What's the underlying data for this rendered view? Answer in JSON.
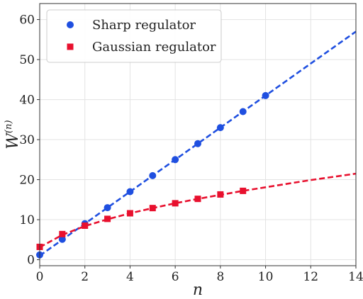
{
  "chart_data": {
    "type": "scatter",
    "xlabel": "n",
    "ylabel": "W",
    "ylabel_superscript": "(n)",
    "xlim": [
      0,
      14
    ],
    "ylim": [
      -1.5,
      64
    ],
    "xticks": [
      0,
      2,
      4,
      6,
      8,
      10,
      12,
      14
    ],
    "yticks": [
      0,
      10,
      20,
      30,
      40,
      50,
      60
    ],
    "grid": true,
    "legend_position": "top-left",
    "series": [
      {
        "name": "Sharp regulator",
        "color": "#1f4fe0",
        "marker": "circle",
        "x": [
          0,
          1,
          2,
          3,
          4,
          5,
          6,
          7,
          8,
          9,
          10
        ],
        "y": [
          1.2,
          5.1,
          9.0,
          13.0,
          17.0,
          21.0,
          25.0,
          29.0,
          33.0,
          37.0,
          41.0
        ],
        "fit": {
          "style": "dashed",
          "x": [
            0,
            14
          ],
          "y": [
            1.0,
            57.0
          ]
        }
      },
      {
        "name": "Gaussian regulator",
        "color": "#e8102e",
        "marker": "square",
        "x": [
          0,
          1,
          2,
          3,
          4,
          5,
          6,
          7,
          8,
          9
        ],
        "y": [
          3.2,
          6.4,
          8.5,
          10.2,
          11.6,
          12.9,
          14.1,
          15.2,
          16.3,
          17.2
        ],
        "fit": {
          "style": "dashed",
          "x": [
            0,
            1,
            2,
            3,
            4,
            5,
            6,
            7,
            8,
            9,
            10,
            11,
            12,
            13,
            14
          ],
          "y": [
            3.1,
            6.2,
            8.4,
            10.1,
            11.6,
            12.9,
            14.1,
            15.2,
            16.2,
            17.2,
            18.1,
            19.0,
            19.9,
            20.7,
            21.5
          ]
        }
      }
    ]
  }
}
